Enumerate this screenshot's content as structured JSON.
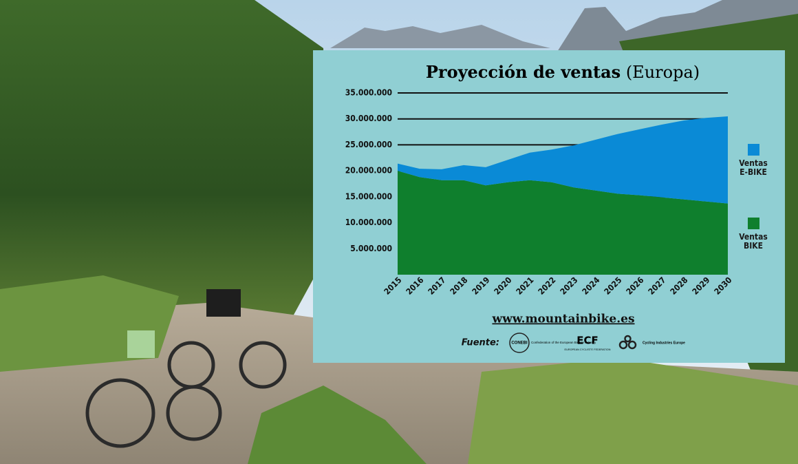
{
  "chart_data": {
    "type": "stacked-area",
    "title": "Proyección de ventas",
    "subtitle": "(Europa)",
    "categories": [
      "2015",
      "2016",
      "2017",
      "2018",
      "2019",
      "2020",
      "2021",
      "2022",
      "2023",
      "2024",
      "2025",
      "2026",
      "2027",
      "2028",
      "2029",
      "2030"
    ],
    "series": [
      {
        "name": "Ventas BIKE",
        "color": "#0f7f2d",
        "values": [
          20000000,
          18800000,
          18200000,
          18200000,
          17200000,
          17800000,
          18200000,
          17800000,
          16800000,
          16200000,
          15600000,
          15300000,
          14900000,
          14500000,
          14100000,
          13700000
        ]
      },
      {
        "name": "Ventas E-BIKE",
        "color": "#0a8ad6",
        "values": [
          1400000,
          1600000,
          2100000,
          2900000,
          3500000,
          4300000,
          5300000,
          6300000,
          8100000,
          9800000,
          11500000,
          12700000,
          14000000,
          15200000,
          16100000,
          16800000
        ]
      }
    ],
    "ylim": [
      0,
      35000000
    ],
    "yticks": [
      {
        "value": 5000000,
        "label": "5.000.000"
      },
      {
        "value": 10000000,
        "label": "10.000.000"
      },
      {
        "value": 15000000,
        "label": "15.000.000"
      },
      {
        "value": 20000000,
        "label": "20.000.000"
      },
      {
        "value": 25000000,
        "label": "25.000.000"
      },
      {
        "value": 30000000,
        "label": "30.000.000"
      },
      {
        "value": 35000000,
        "label": "35.000.000"
      }
    ],
    "grid": true,
    "url": "www.mountainbike.es",
    "source_label": "Fuente:",
    "sources": [
      "CONEBI",
      "Confederation of the European Bicycle Industry",
      "ECF",
      "EUROPEAN CYCLISTS' FEDERATION",
      "Cycling Industries Europe"
    ]
  }
}
